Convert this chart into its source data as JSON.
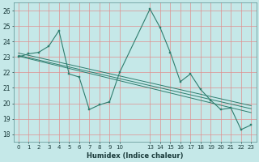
{
  "xlabel": "Humidex (Indice chaleur)",
  "background_color": "#c5e8e8",
  "grid_color": "#e09090",
  "line_color": "#2e7d6e",
  "xlim": [
    -0.5,
    23.5
  ],
  "ylim": [
    17.5,
    26.5
  ],
  "yticks": [
    18,
    19,
    20,
    21,
    22,
    23,
    24,
    25,
    26
  ],
  "xticks": [
    0,
    1,
    2,
    3,
    4,
    5,
    6,
    7,
    8,
    9,
    10,
    13,
    14,
    15,
    16,
    17,
    18,
    19,
    20,
    21,
    22,
    23
  ],
  "x_data": [
    0,
    1,
    2,
    3,
    4,
    5,
    6,
    7,
    8,
    9,
    10,
    13,
    14,
    15,
    16,
    17,
    18,
    19,
    20,
    21,
    22,
    23
  ],
  "y_data": [
    23.0,
    23.2,
    23.3,
    23.7,
    24.7,
    21.9,
    21.7,
    19.6,
    19.9,
    20.1,
    22.0,
    26.1,
    24.9,
    23.3,
    21.4,
    21.9,
    20.9,
    20.2,
    19.6,
    19.7,
    18.3,
    18.6
  ],
  "trend1_x": [
    0,
    23
  ],
  "trend1_y": [
    23.05,
    19.4
  ],
  "trend2_x": [
    0,
    23
  ],
  "trend2_y": [
    23.1,
    19.65
  ],
  "trend3_x": [
    0,
    23
  ],
  "trend3_y": [
    23.25,
    19.85
  ]
}
